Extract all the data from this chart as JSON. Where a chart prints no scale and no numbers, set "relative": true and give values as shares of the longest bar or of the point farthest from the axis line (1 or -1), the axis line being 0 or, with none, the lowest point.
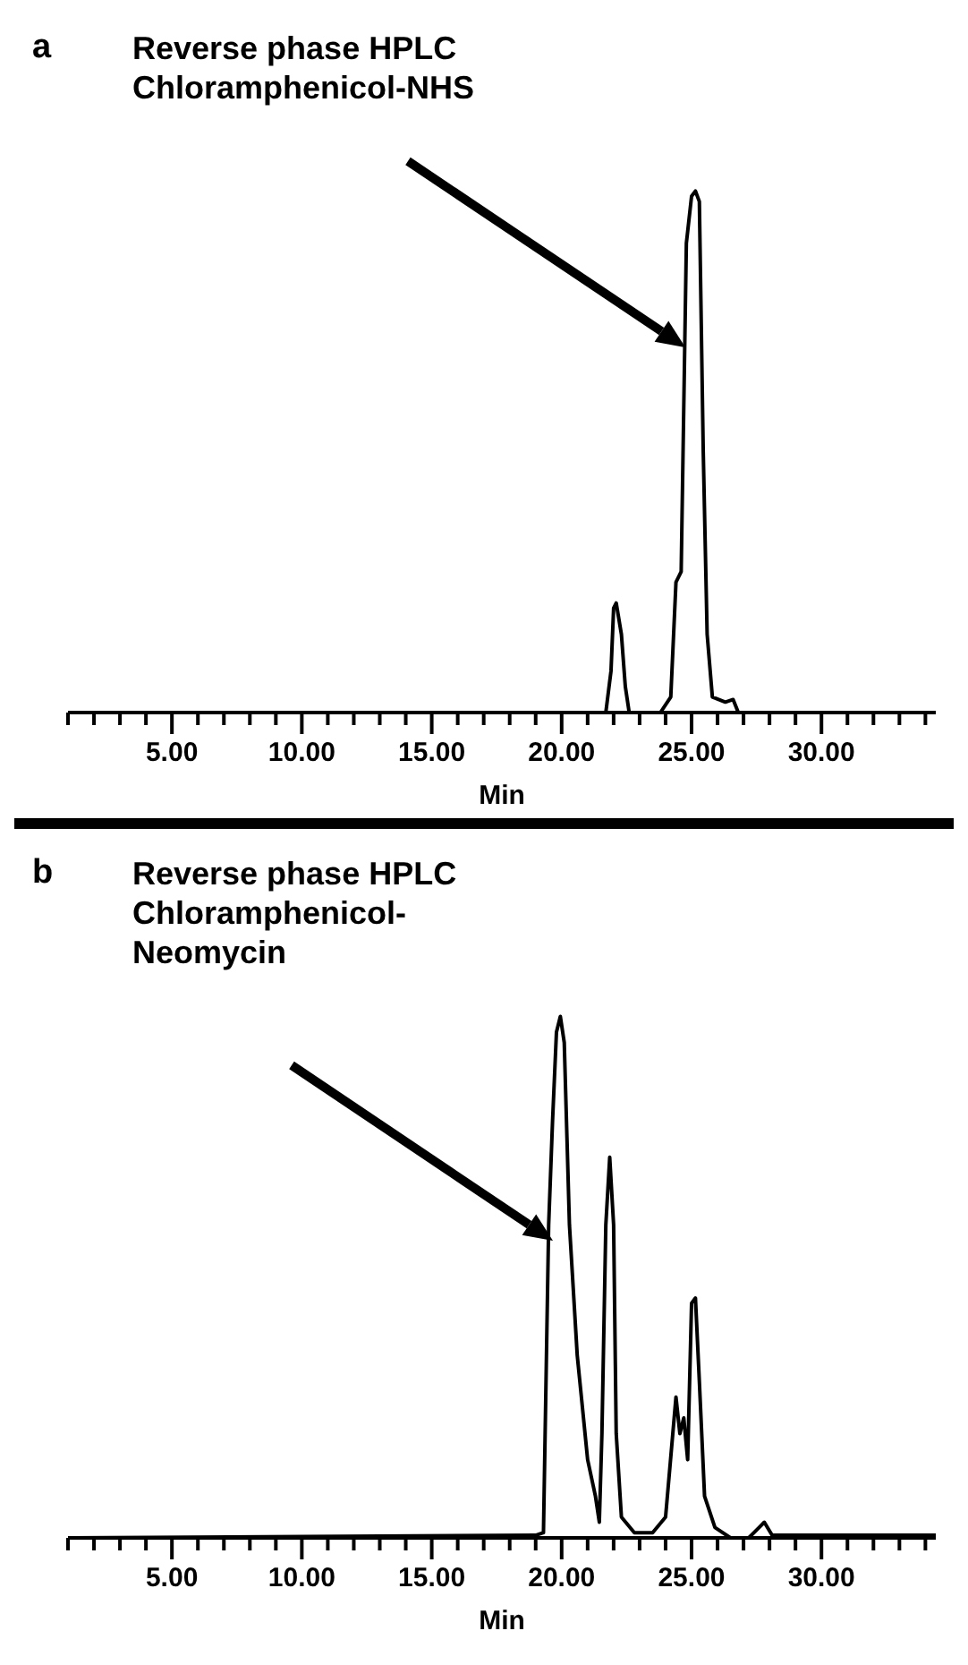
{
  "chart_data": [
    {
      "type": "line",
      "title": "a",
      "xlabel": "Min",
      "relative": true,
      "tick_labels": "x",
      "marker": "none",
      "line_style": "solid",
      "annotations": [
        "Reverse phase HPLC\nChloramphenicol-NHS"
      ],
      "xlim": [
        1,
        34.4
      ],
      "xticks": [
        {
          "value": 1,
          "label": null
        },
        {
          "value": 2,
          "label": null
        },
        {
          "value": 3,
          "label": null
        },
        {
          "value": 4,
          "label": null
        },
        {
          "value": 5,
          "label": "5.00"
        },
        {
          "value": 6,
          "label": null
        },
        {
          "value": 7,
          "label": null
        },
        {
          "value": 8,
          "label": null
        },
        {
          "value": 9,
          "label": null
        },
        {
          "value": 10,
          "label": "10.00"
        },
        {
          "value": 11,
          "label": null
        },
        {
          "value": 12,
          "label": null
        },
        {
          "value": 13,
          "label": null
        },
        {
          "value": 14,
          "label": null
        },
        {
          "value": 15,
          "label": "15.00"
        },
        {
          "value": 16,
          "label": null
        },
        {
          "value": 17,
          "label": null
        },
        {
          "value": 18,
          "label": null
        },
        {
          "value": 19,
          "label": null
        },
        {
          "value": 20,
          "label": "20.00"
        },
        {
          "value": 21,
          "label": null
        },
        {
          "value": 22,
          "label": null
        },
        {
          "value": 23,
          "label": null
        },
        {
          "value": 24,
          "label": null
        },
        {
          "value": 25,
          "label": "25.00"
        },
        {
          "value": 26,
          "label": null
        },
        {
          "value": 27,
          "label": null
        },
        {
          "value": 28,
          "label": null
        },
        {
          "value": 29,
          "label": null
        },
        {
          "value": 30,
          "label": "30.00"
        },
        {
          "value": 31,
          "label": null
        },
        {
          "value": 32,
          "label": null
        },
        {
          "value": 33,
          "label": null
        },
        {
          "value": 34,
          "label": null
        }
      ],
      "series": [
        {
          "color": "#000000",
          "x": [
            1,
            21.7,
            21.9,
            22.0,
            22.1,
            22.3,
            22.45,
            22.6,
            23.8,
            24.2,
            24.4,
            24.6,
            24.8,
            25.0,
            25.15,
            25.3,
            25.45,
            25.6,
            25.8,
            26.3,
            26.6,
            26.8,
            34.1
          ],
          "values": [
            0,
            0,
            0.08,
            0.2,
            0.21,
            0.15,
            0.05,
            0,
            0,
            0.03,
            0.25,
            0.27,
            0.9,
            0.99,
            1,
            0.98,
            0.5,
            0.15,
            0.03,
            0.02,
            0.025,
            0,
            0
          ]
        }
      ]
    },
    {
      "type": "line",
      "title": "b",
      "xlabel": "Min",
      "relative": true,
      "tick_labels": "x",
      "marker": "none",
      "line_style": "solid",
      "annotations": [
        "Reverse phase HPLC\nChloramphenicol-\nNeomycin"
      ],
      "xlim": [
        1,
        34.4
      ],
      "xticks": [
        {
          "value": 1,
          "label": null
        },
        {
          "value": 2,
          "label": null
        },
        {
          "value": 3,
          "label": null
        },
        {
          "value": 4,
          "label": null
        },
        {
          "value": 5,
          "label": "5.00"
        },
        {
          "value": 6,
          "label": null
        },
        {
          "value": 7,
          "label": null
        },
        {
          "value": 8,
          "label": null
        },
        {
          "value": 9,
          "label": null
        },
        {
          "value": 10,
          "label": "10.00"
        },
        {
          "value": 11,
          "label": null
        },
        {
          "value": 12,
          "label": null
        },
        {
          "value": 13,
          "label": null
        },
        {
          "value": 14,
          "label": null
        },
        {
          "value": 15,
          "label": "15.00"
        },
        {
          "value": 16,
          "label": null
        },
        {
          "value": 17,
          "label": null
        },
        {
          "value": 18,
          "label": null
        },
        {
          "value": 19,
          "label": null
        },
        {
          "value": 20,
          "label": "20.00"
        },
        {
          "value": 21,
          "label": null
        },
        {
          "value": 22,
          "label": null
        },
        {
          "value": 23,
          "label": null
        },
        {
          "value": 24,
          "label": null
        },
        {
          "value": 25,
          "label": "25.00"
        },
        {
          "value": 26,
          "label": null
        },
        {
          "value": 27,
          "label": null
        },
        {
          "value": 28,
          "label": null
        },
        {
          "value": 29,
          "label": null
        },
        {
          "value": 30,
          "label": "30.00"
        },
        {
          "value": 31,
          "label": null
        },
        {
          "value": 32,
          "label": null
        },
        {
          "value": 33,
          "label": null
        },
        {
          "value": 34,
          "label": null
        }
      ],
      "series": [
        {
          "color": "#000000",
          "x": [
            1,
            19.0,
            19.3,
            19.5,
            19.65,
            19.8,
            19.95,
            20.1,
            20.3,
            20.6,
            21.0,
            21.3,
            21.45,
            21.55,
            21.7,
            21.85,
            22.0,
            22.1,
            22.3,
            22.8,
            23.5,
            24.0,
            24.4,
            24.55,
            24.7,
            24.85,
            25.0,
            25.15,
            25.3,
            25.5,
            25.9,
            26.5,
            27.2,
            27.6,
            27.8,
            28.1,
            34.4
          ],
          "values": [
            0,
            0.005,
            0.01,
            0.6,
            0.8,
            0.97,
            1,
            0.95,
            0.6,
            0.35,
            0.15,
            0.08,
            0.03,
            0.2,
            0.6,
            0.73,
            0.6,
            0.2,
            0.04,
            0.01,
            0.01,
            0.04,
            0.27,
            0.2,
            0.23,
            0.15,
            0.45,
            0.46,
            0.3,
            0.08,
            0.02,
            0,
            0,
            0.02,
            0.03,
            0.005,
            0.005
          ]
        }
      ]
    }
  ]
}
